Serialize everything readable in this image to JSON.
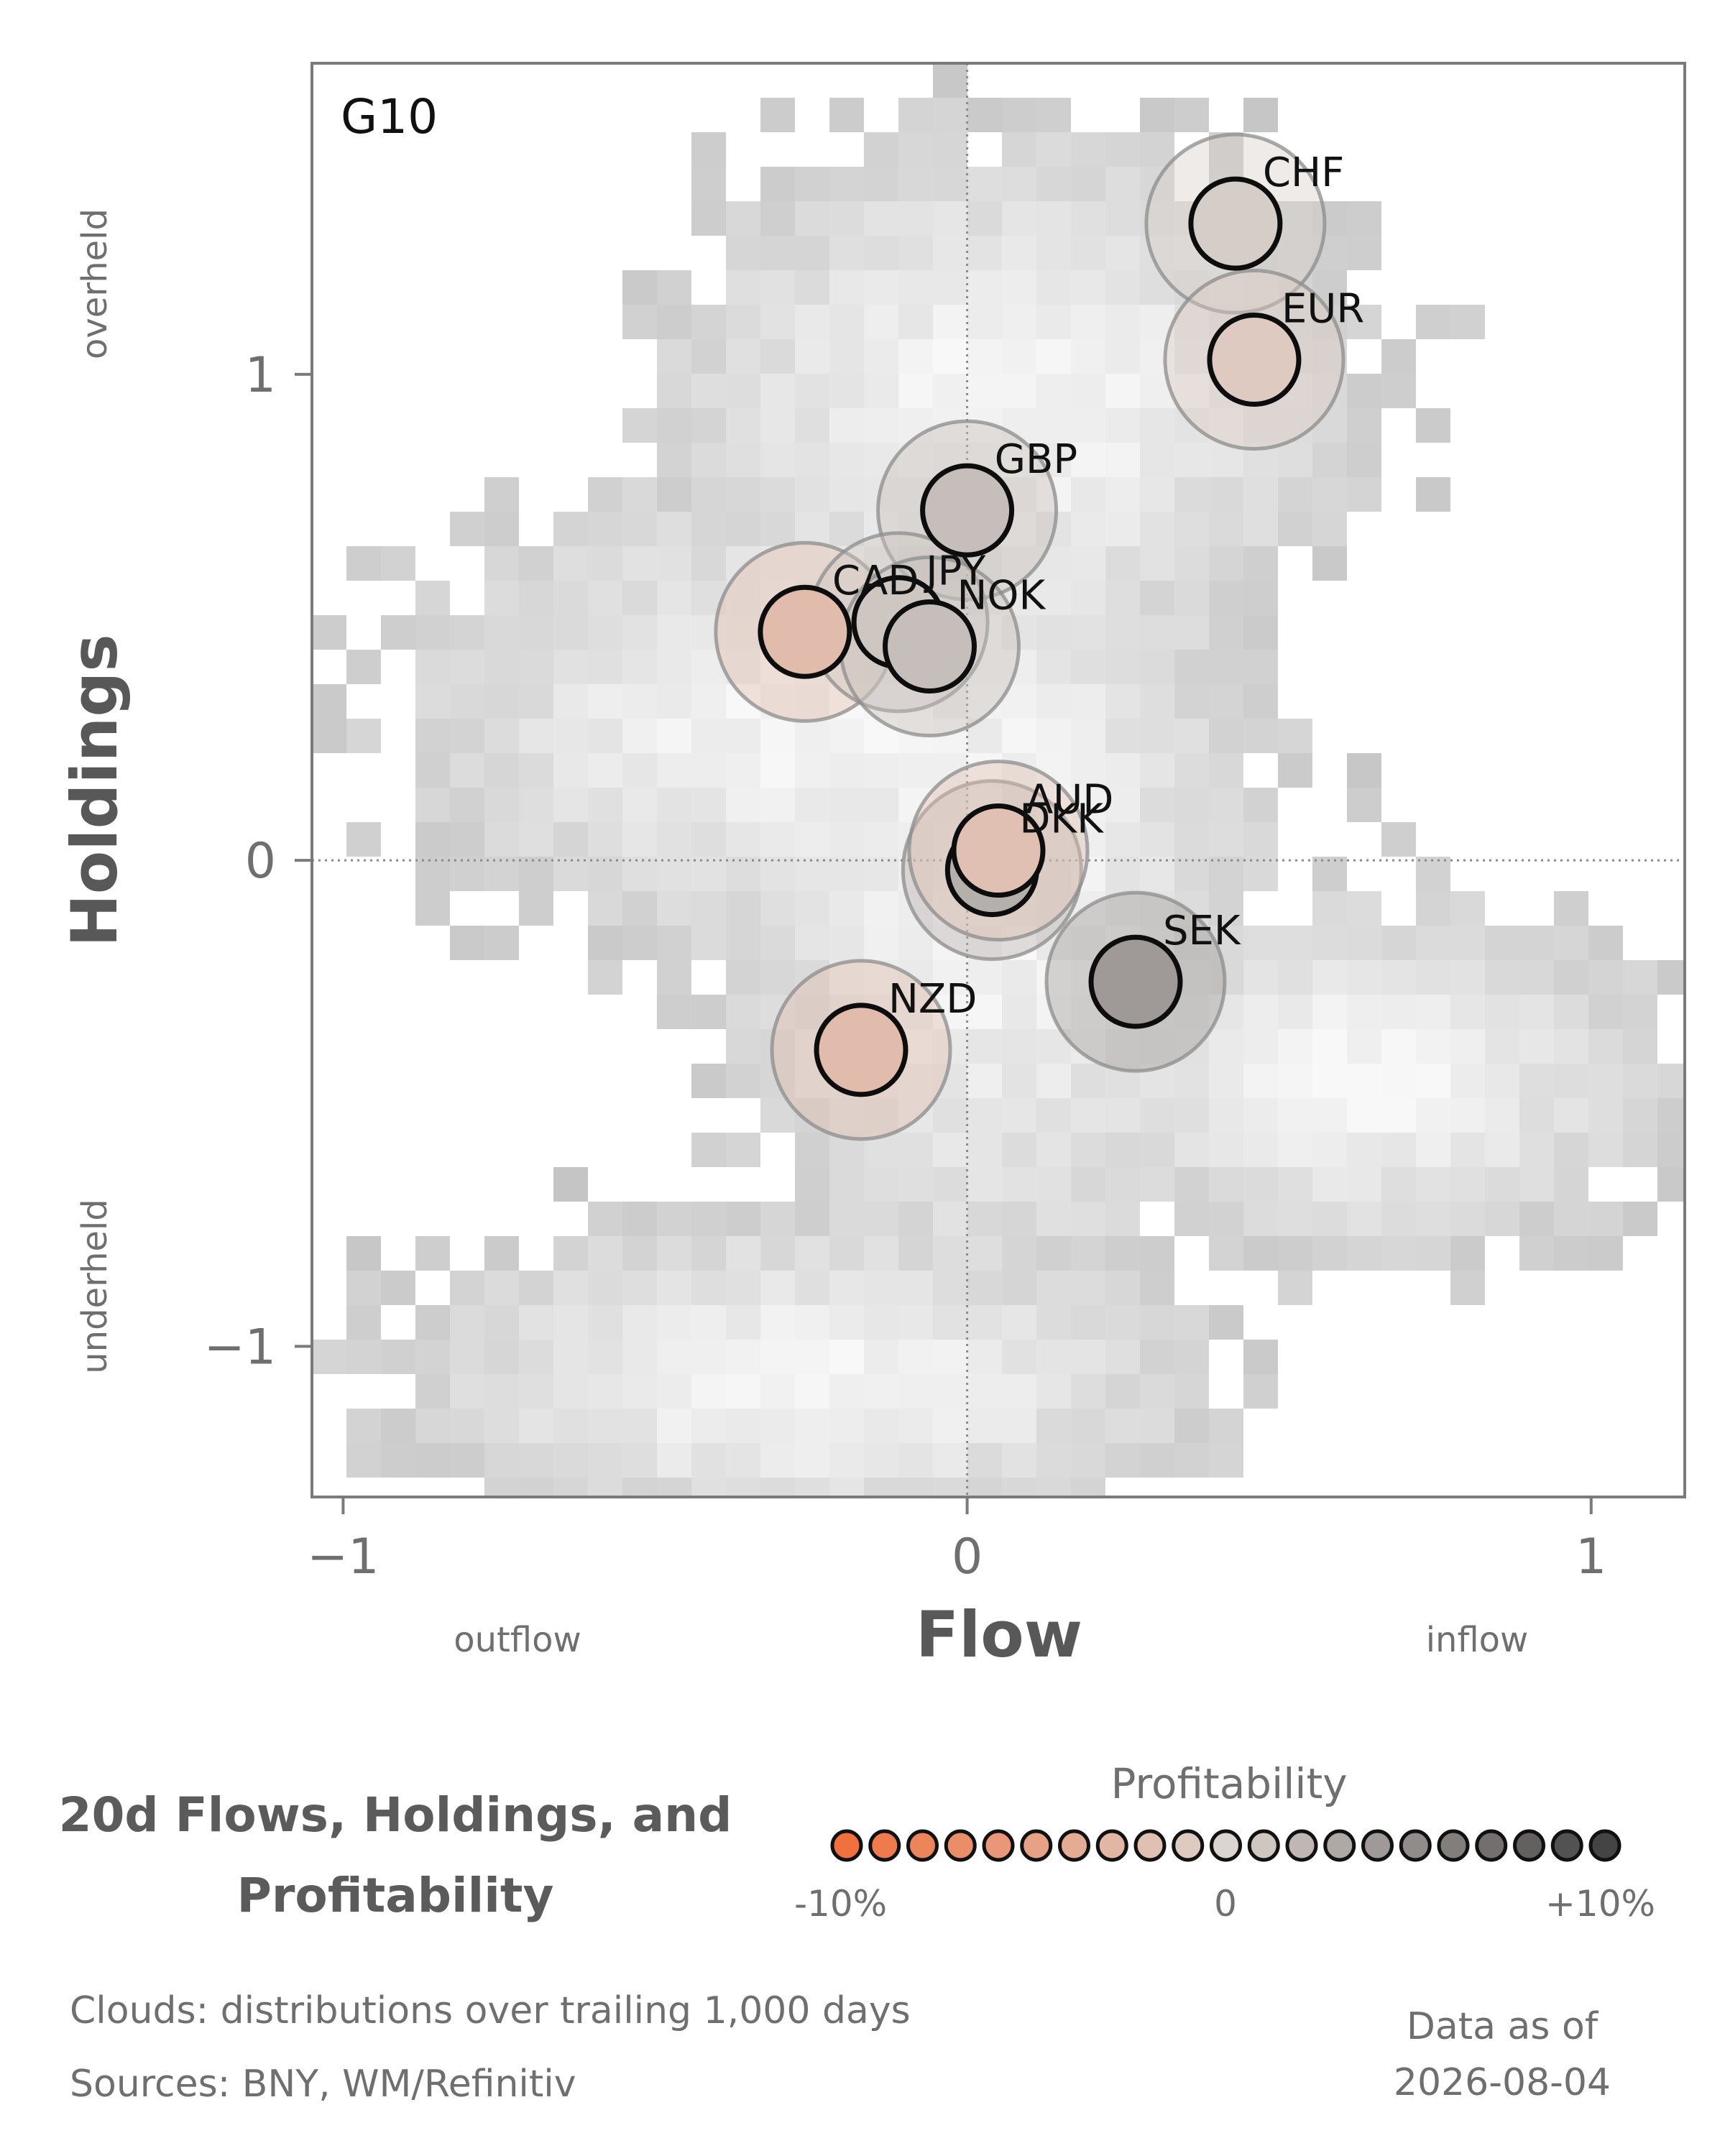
{
  "chart_data": {
    "type": "scatter",
    "title": "20d Flows, Holdings, and Profitability",
    "panel_label": "G10",
    "xlabel": "Flow",
    "ylabel": "Holdings",
    "xlim": [
      -1.05,
      1.15
    ],
    "ylim": [
      -1.31,
      1.64
    ],
    "x_ticks": [
      -1,
      0,
      1
    ],
    "y_ticks": [
      -1,
      0,
      1
    ],
    "x_tick_labels": [
      "−1",
      "0",
      "1"
    ],
    "y_tick_labels": [
      "−1",
      "0",
      "1"
    ],
    "x_side_labels": {
      "left": "outflow",
      "right": "inflow"
    },
    "y_side_labels": {
      "top": "overheld",
      "bottom": "underheld"
    },
    "grid": false,
    "zero_lines": true,
    "points": [
      {
        "label": "CHF",
        "x": 0.43,
        "y": 1.31,
        "profitability": 0.5
      },
      {
        "label": "EUR",
        "x": 0.46,
        "y": 1.03,
        "profitability": -1.0
      },
      {
        "label": "GBP",
        "x": 0.0,
        "y": 0.72,
        "profitability": 1.5
      },
      {
        "label": "CAD",
        "x": -0.26,
        "y": 0.47,
        "profitability": -2.5
      },
      {
        "label": "JPY",
        "x": -0.11,
        "y": 0.49,
        "profitability": 1.0
      },
      {
        "label": "NOK",
        "x": -0.06,
        "y": 0.44,
        "profitability": 1.5
      },
      {
        "label": "DKK",
        "x": 0.04,
        "y": -0.02,
        "profitability": 2.5
      },
      {
        "label": "AUD",
        "x": 0.05,
        "y": 0.02,
        "profitability": -2.0
      },
      {
        "label": "SEK",
        "x": 0.27,
        "y": -0.25,
        "profitability": 4.0
      },
      {
        "label": "NZD",
        "x": -0.17,
        "y": -0.39,
        "profitability": -2.5
      }
    ],
    "colorbar": {
      "title": "Profitability",
      "min_label": "-10%",
      "mid_label": "0",
      "max_label": "+10%",
      "range": [
        -10,
        10
      ],
      "low_color": "#f0703f",
      "mid_color": "#dcd4cf",
      "high_color": "#444444"
    }
  },
  "footer": {
    "clouds_note": "Clouds:  distributions over trailing 1,000 days",
    "sources_note": "Sources:  BNY, WM/Refinitiv",
    "asof_label": "Data as of",
    "asof_date": "2026-08-04"
  }
}
